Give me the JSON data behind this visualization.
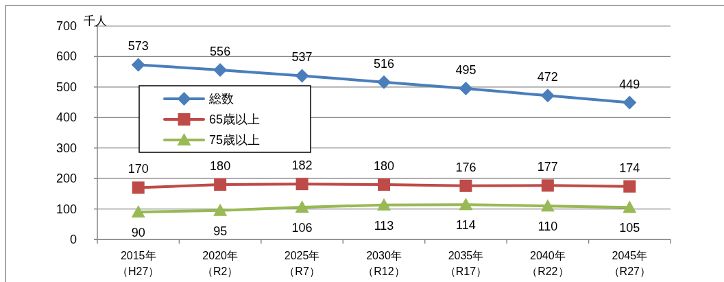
{
  "chart_data": {
    "type": "line",
    "ylabel": "千人",
    "categories": [
      "2015年（H27）",
      "2020年（R2）",
      "2025年（R7）",
      "2030年（R12）",
      "2035年（R17）",
      "2040年（R22）",
      "2045年（R27）"
    ],
    "series": [
      {
        "name": "総数",
        "color": "#4a7ebb",
        "marker": "diamond",
        "values": [
          573,
          556,
          537,
          516,
          495,
          472,
          449
        ]
      },
      {
        "name": "65歳以上",
        "color": "#be4b48",
        "marker": "square",
        "values": [
          170,
          180,
          182,
          180,
          176,
          177,
          174
        ]
      },
      {
        "name": "75歳以上",
        "color": "#98b954",
        "marker": "triangle",
        "values": [
          90,
          95,
          106,
          113,
          114,
          110,
          105
        ]
      }
    ],
    "ylim": [
      0,
      700
    ],
    "yticks": [
      0,
      100,
      200,
      300,
      400,
      500,
      600,
      700
    ],
    "grid": "y",
    "legend": "left",
    "data_labels": true
  }
}
